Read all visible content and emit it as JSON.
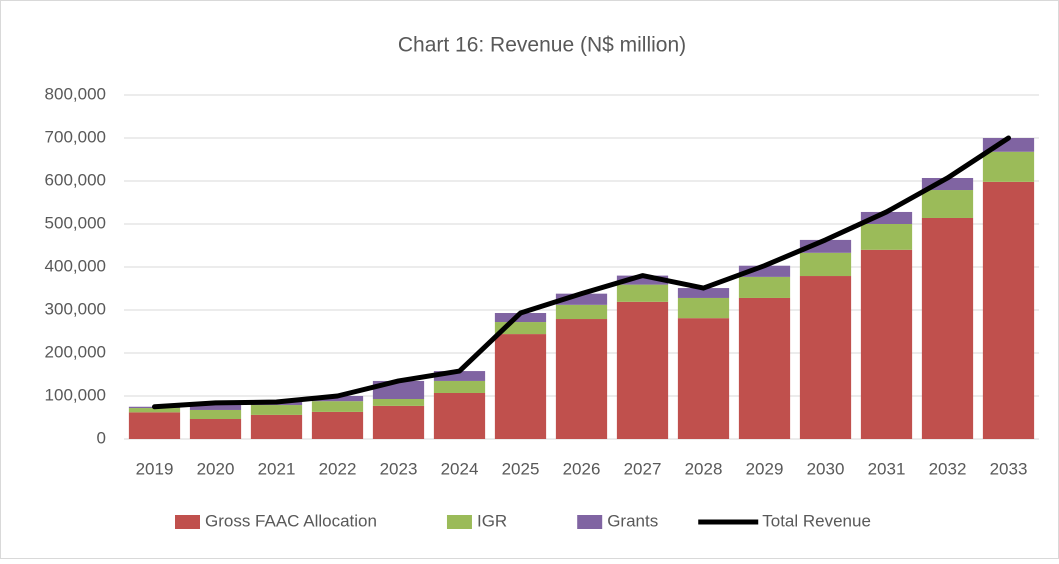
{
  "chart_data": {
    "type": "bar",
    "stacked": true,
    "title": "Chart 16: Revenue (N$ million)",
    "categories": [
      "2019",
      "2020",
      "2021",
      "2022",
      "2023",
      "2024",
      "2025",
      "2026",
      "2027",
      "2028",
      "2029",
      "2030",
      "2031",
      "2032",
      "2033"
    ],
    "series": [
      {
        "name": "Gross FAAC Allocation",
        "color": "#c0504d",
        "values": [
          62000,
          46500,
          56000,
          63000,
          77000,
          107000,
          244000,
          279000,
          319000,
          281000,
          328000,
          379000,
          440000,
          514000,
          598000
        ]
      },
      {
        "name": "IGR",
        "color": "#9bbb59",
        "values": [
          10000,
          21000,
          23000,
          25000,
          16000,
          28000,
          28000,
          33000,
          40000,
          47000,
          49000,
          54000,
          60000,
          65000,
          70000
        ]
      },
      {
        "name": "Grants",
        "color": "#8064a2",
        "values": [
          3000,
          16000,
          7000,
          12000,
          42000,
          23000,
          21000,
          26000,
          21000,
          23000,
          26000,
          30000,
          28000,
          28000,
          32000
        ]
      },
      {
        "name": "Total Revenue",
        "type": "line",
        "color": "#000000",
        "values": [
          75000,
          84000,
          86000,
          100000,
          135000,
          158000,
          293000,
          338000,
          380000,
          351000,
          403000,
          463000,
          528000,
          607000,
          700000
        ]
      }
    ],
    "ylim": [
      0,
      800000
    ],
    "yticks": [
      0,
      {
        "value": 100000,
        "label": "100,000"
      },
      {
        "value": 200000,
        "label": "200,000"
      },
      {
        "value": 300000,
        "label": "300,000"
      },
      {
        "value": 400000,
        "label": "400,000"
      },
      {
        "value": 500000,
        "label": "500,000"
      },
      {
        "value": 600000,
        "label": "600,000"
      },
      {
        "value": 700000,
        "label": "700,000"
      },
      {
        "value": 800000,
        "label": "800,000"
      }
    ],
    "grid": true,
    "legend": "bottom"
  }
}
